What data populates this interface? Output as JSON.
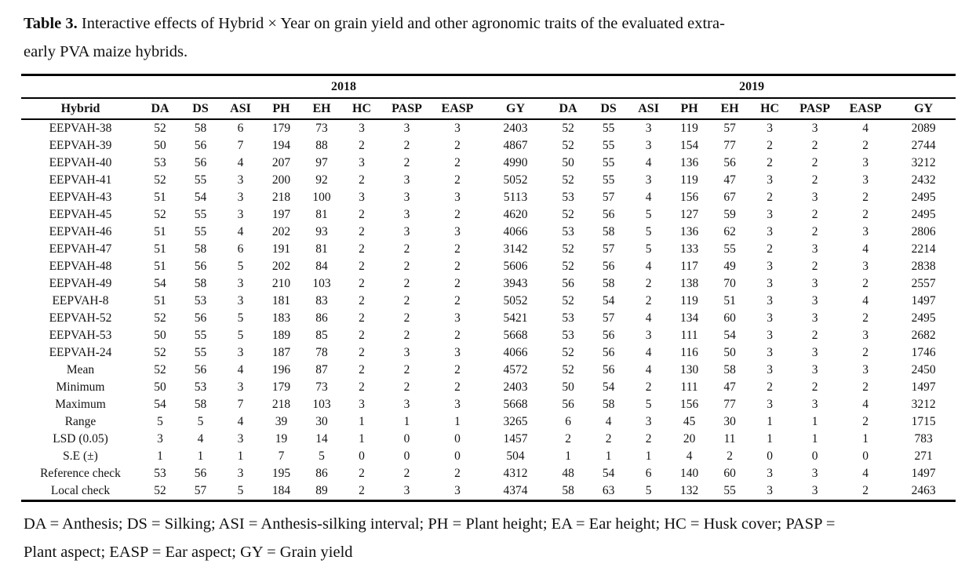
{
  "caption": {
    "label": "Table 3.",
    "line1": " Interactive effects of Hybrid × Year on grain yield and other agronomic traits of the evaluated extra-",
    "line2": "early PVA maize hybrids."
  },
  "table": {
    "year_headers": [
      "2018",
      "2019"
    ],
    "columns": [
      "Hybrid",
      "DA",
      "DS",
      "ASI",
      "PH",
      "EH",
      "HC",
      "PASP",
      "EASP",
      "GY"
    ],
    "rows": [
      {
        "hybrid": "EEPVAH-38",
        "y2018": [
          52,
          58,
          6,
          179,
          73,
          3,
          3,
          3,
          2403
        ],
        "y2019": [
          52,
          55,
          3,
          119,
          57,
          3,
          3,
          4,
          2089
        ]
      },
      {
        "hybrid": "EEPVAH-39",
        "y2018": [
          50,
          56,
          7,
          194,
          88,
          2,
          2,
          2,
          4867
        ],
        "y2019": [
          52,
          55,
          3,
          154,
          77,
          2,
          2,
          2,
          2744
        ]
      },
      {
        "hybrid": "EEPVAH-40",
        "y2018": [
          53,
          56,
          4,
          207,
          97,
          3,
          2,
          2,
          4990
        ],
        "y2019": [
          50,
          55,
          4,
          136,
          56,
          2,
          2,
          3,
          3212
        ]
      },
      {
        "hybrid": "EEPVAH-41",
        "y2018": [
          52,
          55,
          3,
          200,
          92,
          2,
          3,
          2,
          5052
        ],
        "y2019": [
          52,
          55,
          3,
          119,
          47,
          3,
          2,
          3,
          2432
        ]
      },
      {
        "hybrid": "EEPVAH-43",
        "y2018": [
          51,
          54,
          3,
          218,
          100,
          3,
          3,
          3,
          5113
        ],
        "y2019": [
          53,
          57,
          4,
          156,
          67,
          2,
          3,
          2,
          2495
        ]
      },
      {
        "hybrid": "EEPVAH-45",
        "y2018": [
          52,
          55,
          3,
          197,
          81,
          2,
          3,
          2,
          4620
        ],
        "y2019": [
          52,
          56,
          5,
          127,
          59,
          3,
          2,
          2,
          2495
        ]
      },
      {
        "hybrid": "EEPVAH-46",
        "y2018": [
          51,
          55,
          4,
          202,
          93,
          2,
          3,
          3,
          4066
        ],
        "y2019": [
          53,
          58,
          5,
          136,
          62,
          3,
          2,
          3,
          2806
        ]
      },
      {
        "hybrid": "EEPVAH-47",
        "y2018": [
          51,
          58,
          6,
          191,
          81,
          2,
          2,
          2,
          3142
        ],
        "y2019": [
          52,
          57,
          5,
          133,
          55,
          2,
          3,
          4,
          2214
        ]
      },
      {
        "hybrid": "EEPVAH-48",
        "y2018": [
          51,
          56,
          5,
          202,
          84,
          2,
          2,
          2,
          5606
        ],
        "y2019": [
          52,
          56,
          4,
          117,
          49,
          3,
          2,
          3,
          2838
        ]
      },
      {
        "hybrid": "EEPVAH-49",
        "y2018": [
          54,
          58,
          3,
          210,
          103,
          2,
          2,
          2,
          3943
        ],
        "y2019": [
          56,
          58,
          2,
          138,
          70,
          3,
          3,
          2,
          2557
        ]
      },
      {
        "hybrid": "EEPVAH-8",
        "y2018": [
          51,
          53,
          3,
          181,
          83,
          2,
          2,
          2,
          5052
        ],
        "y2019": [
          52,
          54,
          2,
          119,
          51,
          3,
          3,
          4,
          1497
        ]
      },
      {
        "hybrid": "EEPVAH-52",
        "y2018": [
          52,
          56,
          5,
          183,
          86,
          2,
          2,
          3,
          5421
        ],
        "y2019": [
          53,
          57,
          4,
          134,
          60,
          3,
          3,
          2,
          2495
        ]
      },
      {
        "hybrid": "EEPVAH-53",
        "y2018": [
          50,
          55,
          5,
          189,
          85,
          2,
          2,
          2,
          5668
        ],
        "y2019": [
          53,
          56,
          3,
          111,
          54,
          3,
          2,
          3,
          2682
        ]
      },
      {
        "hybrid": "EEPVAH-24",
        "y2018": [
          52,
          55,
          3,
          187,
          78,
          2,
          3,
          3,
          4066
        ],
        "y2019": [
          52,
          56,
          4,
          116,
          50,
          3,
          3,
          2,
          1746
        ]
      },
      {
        "hybrid": "Mean",
        "y2018": [
          52,
          56,
          4,
          196,
          87,
          2,
          2,
          2,
          4572
        ],
        "y2019": [
          52,
          56,
          4,
          130,
          58,
          3,
          3,
          3,
          2450
        ]
      },
      {
        "hybrid": "Minimum",
        "y2018": [
          50,
          53,
          3,
          179,
          73,
          2,
          2,
          2,
          2403
        ],
        "y2019": [
          50,
          54,
          2,
          111,
          47,
          2,
          2,
          2,
          1497
        ]
      },
      {
        "hybrid": "Maximum",
        "y2018": [
          54,
          58,
          7,
          218,
          103,
          3,
          3,
          3,
          5668
        ],
        "y2019": [
          56,
          58,
          5,
          156,
          77,
          3,
          3,
          4,
          3212
        ]
      },
      {
        "hybrid": "Range",
        "y2018": [
          5,
          5,
          4,
          39,
          30,
          1,
          1,
          1,
          3265
        ],
        "y2019": [
          6,
          4,
          3,
          45,
          30,
          1,
          1,
          2,
          1715
        ]
      },
      {
        "hybrid": "LSD (0.05)",
        "y2018": [
          3,
          4,
          3,
          19,
          14,
          1,
          0,
          0,
          1457
        ],
        "y2019": [
          2,
          2,
          2,
          20,
          11,
          1,
          1,
          1,
          783
        ]
      },
      {
        "hybrid": "S.E (±)",
        "y2018": [
          1,
          1,
          1,
          7,
          5,
          0,
          0,
          0,
          504
        ],
        "y2019": [
          1,
          1,
          1,
          4,
          2,
          0,
          0,
          0,
          271
        ]
      },
      {
        "hybrid": "Reference check",
        "y2018": [
          53,
          56,
          3,
          195,
          86,
          2,
          2,
          2,
          4312
        ],
        "y2019": [
          48,
          54,
          6,
          140,
          60,
          3,
          3,
          4,
          1497
        ]
      },
      {
        "hybrid": "Local check",
        "y2018": [
          52,
          57,
          5,
          184,
          89,
          2,
          3,
          3,
          4374
        ],
        "y2019": [
          58,
          63,
          5,
          132,
          55,
          3,
          3,
          2,
          2463
        ]
      }
    ]
  },
  "footnote": {
    "line1": "DA = Anthesis; DS = Silking; ASI = Anthesis-silking interval; PH = Plant height; EA = Ear height; HC = Husk cover; PASP =",
    "line2": "Plant aspect; EASP = Ear aspect; GY = Grain yield"
  }
}
